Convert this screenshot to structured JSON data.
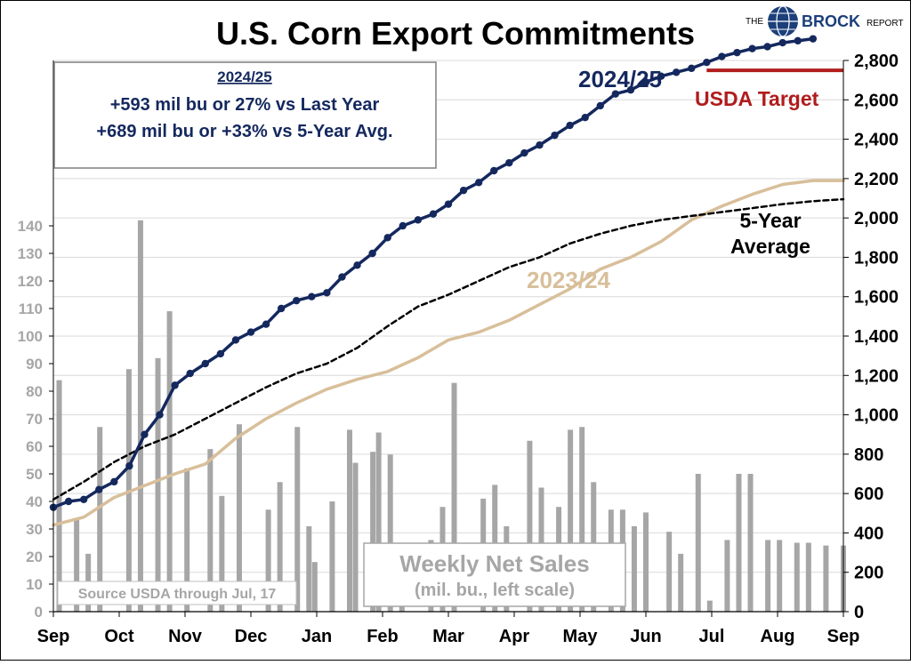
{
  "title": "U.S. Corn Export Commitments",
  "logo": {
    "the": "THE",
    "brock": "BROCK",
    "report": "REPORT"
  },
  "info_box": {
    "heading": "2024/25",
    "line1": "+593 mil bu or 27% vs Last Year",
    "line2": "+689 mil bu or +33% vs 5-Year Avg."
  },
  "labels": {
    "series_2425": "2024/25",
    "usda_target": "USDA Target",
    "five_year_line1": "5-Year",
    "five_year_line2": "Average",
    "series_2324": "2023/24",
    "weekly_line1": "Weekly Net Sales",
    "weekly_line2": "(mil. bu., left scale)",
    "source": "Source USDA through Jul, 17"
  },
  "colors": {
    "series_2425": "#14285e",
    "series_2324": "#d8bf9a",
    "five_year": "#000000",
    "usda_target": "#b01c1c",
    "bars": "#a6a6a6",
    "grid": "#d9d9d9",
    "left_axis_text": "#a6a6a6"
  },
  "chart_data": {
    "type": "bar+line",
    "title": "U.S. Corn Export Commitments",
    "x_label": "",
    "x_ticks": [
      "Sep",
      "Oct",
      "Nov",
      "Dec",
      "Jan",
      "Feb",
      "Mar",
      "Apr",
      "May",
      "Jun",
      "Jul",
      "Aug",
      "Sep"
    ],
    "week_range": [
      0,
      52
    ],
    "left_axis": {
      "label": "Weekly Net Sales (mil. bu.)",
      "ticks": [
        0,
        10,
        20,
        30,
        40,
        50,
        60,
        70,
        80,
        90,
        100,
        110,
        120,
        130,
        140
      ],
      "range": [
        0,
        200
      ]
    },
    "right_axis": {
      "ticks": [
        "0",
        "200",
        "400",
        "600",
        "800",
        "1,000",
        "1,200",
        "1,400",
        "1,600",
        "1,800",
        "2,000",
        "2,200",
        "2,400",
        "2,600",
        "2,800"
      ],
      "range": [
        0,
        2800
      ]
    },
    "grid": "horizontal, right axis",
    "weekly_net_sales": {
      "name": "Weekly Net Sales",
      "x": [
        1,
        4,
        6,
        8,
        13,
        15,
        18,
        20,
        23,
        27,
        29,
        32,
        37,
        39,
        42,
        44,
        45,
        48,
        51,
        52,
        55,
        56,
        58,
        60,
        65,
        67,
        69,
        74,
        76,
        78,
        82,
        84,
        87,
        89,
        91,
        93,
        96,
        98,
        100,
        102,
        106,
        108,
        111,
        113,
        116,
        118,
        120,
        123,
        125,
        128,
        130,
        133,
        136
      ],
      "values": [
        84,
        34,
        21,
        67,
        88,
        142,
        92,
        109,
        52,
        59,
        42,
        68,
        37,
        47,
        67,
        31,
        18,
        40,
        66,
        54,
        58,
        65,
        57,
        14,
        26,
        38,
        83,
        41,
        46,
        31,
        62,
        45,
        38,
        66,
        67,
        47,
        37,
        37,
        31,
        36,
        29,
        21,
        50,
        4,
        26,
        50,
        50,
        26,
        26,
        25,
        25,
        24,
        24
      ]
    },
    "series": [
      {
        "name": "2024/25",
        "x": [
          0,
          1,
          2,
          3,
          4,
          5,
          6,
          7,
          8,
          9,
          10,
          11,
          12,
          13,
          14,
          15,
          16,
          17,
          18,
          19,
          20,
          21,
          22,
          23,
          24,
          25,
          26,
          27,
          28,
          29,
          30,
          31,
          32,
          33,
          34,
          35,
          36,
          37,
          38,
          39,
          40,
          41,
          42,
          43,
          44,
          45,
          46,
          47,
          48,
          49,
          50
        ],
        "values": [
          530,
          560,
          570,
          620,
          660,
          740,
          900,
          1000,
          1150,
          1210,
          1260,
          1310,
          1380,
          1420,
          1460,
          1540,
          1580,
          1600,
          1620,
          1700,
          1760,
          1820,
          1900,
          1960,
          1990,
          2020,
          2070,
          2140,
          2180,
          2240,
          2280,
          2330,
          2370,
          2420,
          2470,
          2510,
          2570,
          2630,
          2650,
          2690,
          2720,
          2740,
          2760,
          2790,
          2820,
          2840,
          2860,
          2870,
          2890,
          2900,
          2910
        ]
      },
      {
        "name": "2023/24",
        "x": [
          0,
          2,
          4,
          6,
          8,
          10,
          12,
          14,
          16,
          18,
          20,
          22,
          24,
          26,
          28,
          30,
          32,
          34,
          36,
          38,
          40,
          42,
          44,
          46,
          48,
          50,
          52
        ],
        "values": [
          440,
          480,
          580,
          640,
          700,
          750,
          880,
          980,
          1060,
          1130,
          1180,
          1220,
          1290,
          1380,
          1420,
          1480,
          1560,
          1640,
          1740,
          1800,
          1880,
          1990,
          2060,
          2120,
          2170,
          2190,
          2190
        ]
      },
      {
        "name": "5-Year Average",
        "x": [
          0,
          2,
          4,
          6,
          8,
          10,
          12,
          14,
          16,
          18,
          20,
          22,
          24,
          26,
          28,
          30,
          32,
          34,
          36,
          38,
          40,
          42,
          44,
          46,
          48,
          50,
          52
        ],
        "values": [
          570,
          660,
          760,
          840,
          900,
          980,
          1060,
          1140,
          1210,
          1260,
          1340,
          1450,
          1550,
          1610,
          1680,
          1750,
          1800,
          1870,
          1920,
          1960,
          1990,
          2010,
          2030,
          2050,
          2070,
          2085,
          2095
        ]
      }
    ],
    "usda_target": {
      "name": "USDA Target",
      "value": 2750,
      "x": [
        43,
        52
      ]
    }
  }
}
